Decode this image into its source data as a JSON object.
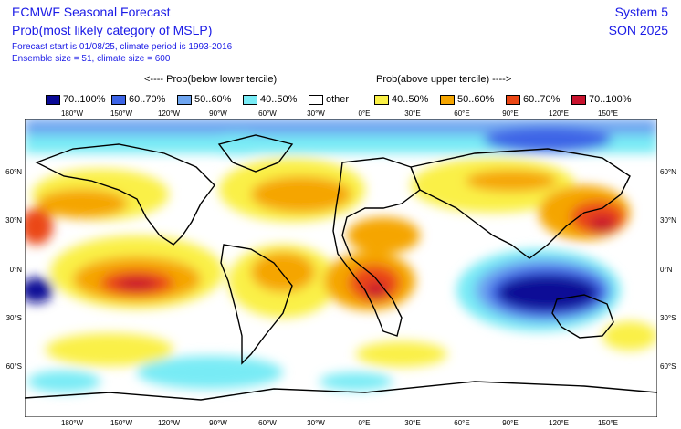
{
  "header": {
    "title": "ECMWF Seasonal Forecast",
    "subtitle": "Prob(most likely category of MSLP)",
    "meta_line1": "Forecast start is 01/08/25, climate period is 1993-2016",
    "meta_line2": "Ensemble size = 51, climate size = 600",
    "system": "System 5",
    "season": "SON 2025"
  },
  "legend": {
    "left_heading": "<---- Prob(below lower tercile)",
    "right_heading": "Prob(above upper tercile) ---->",
    "items": [
      {
        "label": "70..100%",
        "color": "#0a0a96"
      },
      {
        "label": "60..70%",
        "color": "#3c64e6"
      },
      {
        "label": "50..60%",
        "color": "#6ea5f0"
      },
      {
        "label": "40..50%",
        "color": "#78ebf5"
      },
      {
        "label": "other",
        "color": "#ffffff"
      },
      {
        "label": "40..50%",
        "color": "#faf046"
      },
      {
        "label": "50..60%",
        "color": "#f5a500"
      },
      {
        "label": "60..70%",
        "color": "#eb4614"
      },
      {
        "label": "70..100%",
        "color": "#c8122d"
      }
    ]
  },
  "map": {
    "lon_labels": [
      "180°W",
      "150°W",
      "120°W",
      "90°W",
      "60°W",
      "30°W",
      "0°E",
      "30°E",
      "60°E",
      "90°E",
      "120°E",
      "150°E"
    ],
    "lat_labels": [
      "60°N",
      "30°N",
      "0°N",
      "30°S",
      "60°S"
    ]
  }
}
